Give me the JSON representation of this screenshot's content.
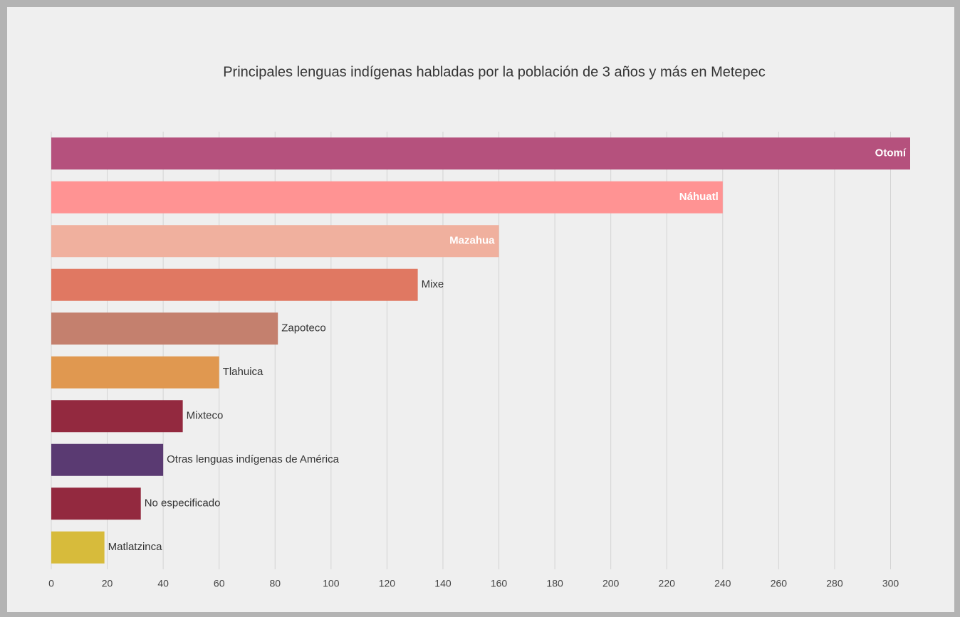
{
  "chart_data": {
    "type": "hbar",
    "title": "Principales lenguas indígenas habladas por la población de 3 años y más en Metepec",
    "categories": [
      "Otomí",
      "Náhuatl",
      "Mazahua",
      "Mixe",
      "Zapoteco",
      "Tlahuica",
      "Mixteco",
      "Otras lenguas indígenas de América",
      "No especificado",
      "Matlatzinca"
    ],
    "values": [
      307,
      240,
      160,
      131,
      81,
      60,
      47,
      40,
      32,
      19
    ],
    "colors": [
      "#b5517d",
      "#ff9393",
      "#f0b09e",
      "#e07862",
      "#c4806e",
      "#e09850",
      "#93293f",
      "#5a3a72",
      "#93293f",
      "#d7bb3b"
    ],
    "xlim": [
      0,
      307
    ],
    "xticks": [
      0,
      20,
      40,
      60,
      80,
      100,
      120,
      140,
      160,
      180,
      200,
      220,
      240,
      260,
      280,
      300
    ],
    "grid": true
  }
}
